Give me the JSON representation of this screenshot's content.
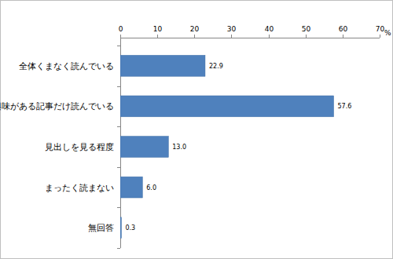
{
  "chart_data": {
    "type": "bar",
    "orientation": "horizontal",
    "categories": [
      "全体くまなく読んでいる",
      "興味がある記事だけ読んでいる",
      "見出しを見る程度",
      "まったく読まない",
      "無回答"
    ],
    "values": [
      22.9,
      57.6,
      13.0,
      6.0,
      0.3
    ],
    "value_labels": [
      "22.9",
      "57.6",
      "13.0",
      "6.0",
      "0.3"
    ],
    "color": "#4f81bd",
    "xlim": [
      0,
      70
    ],
    "xticks": [
      0,
      10,
      20,
      30,
      40,
      50,
      60,
      70
    ],
    "xlabel": "%",
    "data_labels": true,
    "grid": false
  }
}
